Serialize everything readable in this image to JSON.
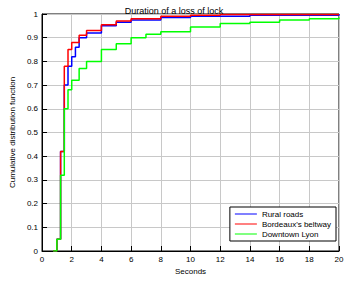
{
  "chart_data": {
    "type": "step",
    "title": "Duration of a loss of lock",
    "x_label": "Seconds",
    "y_label": "Cumulative distribution function",
    "xlim": [
      0,
      20
    ],
    "xticks": [
      0,
      2,
      4,
      6,
      8,
      10,
      12,
      14,
      16,
      18,
      20
    ],
    "ylim": [
      0,
      1
    ],
    "yticks": [
      0,
      0.1,
      0.2,
      0.3,
      0.4,
      0.5,
      0.6,
      0.7,
      0.8,
      0.9,
      1
    ],
    "grid": true,
    "legend": "lower right",
    "series": [
      {
        "name": "Rural roads",
        "color": "#0000ff",
        "x": [
          0.75,
          1.0,
          1.25,
          1.5,
          1.75,
          2.0,
          2.25,
          2.5,
          3.0,
          4.0,
          5.0,
          6.0,
          8.0,
          10.0,
          14.0,
          20.0
        ],
        "values": [
          0,
          0.05,
          0.42,
          0.7,
          0.78,
          0.82,
          0.86,
          0.9,
          0.92,
          0.95,
          0.965,
          0.975,
          0.985,
          0.99,
          0.995,
          1
        ]
      },
      {
        "name": "Bordeaux's beltway",
        "color": "#ff0000",
        "x": [
          0.75,
          1.0,
          1.25,
          1.5,
          1.75,
          2.0,
          2.5,
          3.0,
          4.0,
          5.0,
          6.0,
          8.0,
          10.0,
          12.0,
          20.0
        ],
        "values": [
          0,
          0.05,
          0.42,
          0.78,
          0.85,
          0.88,
          0.91,
          0.93,
          0.955,
          0.97,
          0.98,
          0.99,
          0.995,
          0.998,
          1
        ]
      },
      {
        "name": "Downtown Lyon",
        "color": "#00ff00",
        "x": [
          0.75,
          1.0,
          1.25,
          1.5,
          1.75,
          2.0,
          2.5,
          3.0,
          4.0,
          5.0,
          6.0,
          7.0,
          8.0,
          10.0,
          12.0,
          14.0,
          16.0,
          18.0,
          20.0
        ],
        "values": [
          0,
          0.05,
          0.32,
          0.6,
          0.68,
          0.72,
          0.77,
          0.8,
          0.85,
          0.875,
          0.9,
          0.915,
          0.925,
          0.945,
          0.96,
          0.965,
          0.975,
          0.98,
          0.985
        ]
      }
    ]
  }
}
